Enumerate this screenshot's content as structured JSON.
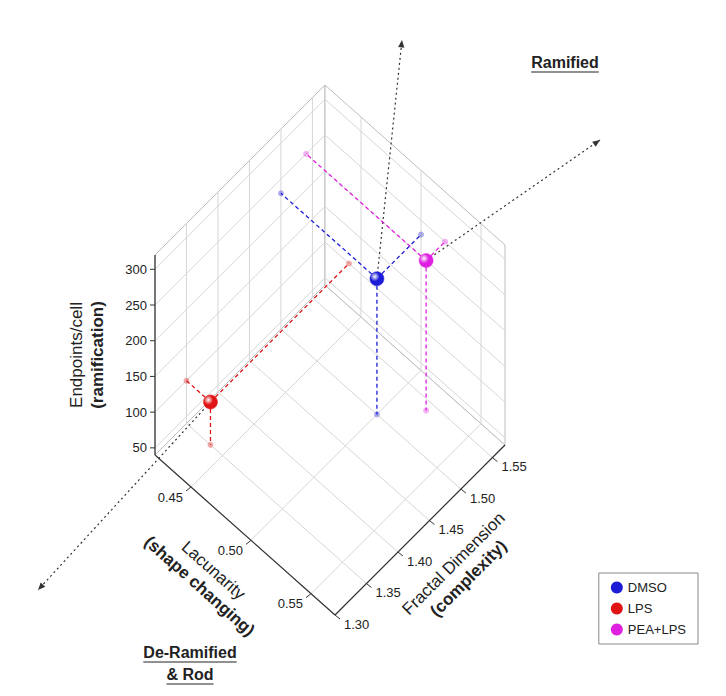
{
  "chart_data": {
    "type": "scatter3d",
    "xlabel": [
      "Lacunarity",
      "(shape changing)"
    ],
    "ylabel": [
      "Fractal Dimension",
      "(complexity)"
    ],
    "zlabel": [
      "Endpoints/cell",
      "(ramification)"
    ],
    "xlim": [
      0.42,
      0.57
    ],
    "xticks": [
      0.45,
      {
        "value": 0.5,
        "label": "0.50"
      },
      0.55
    ],
    "ylim": [
      1.3,
      1.57
    ],
    "yticks": [
      {
        "value": 1.3,
        "label": "1.30"
      },
      1.35,
      {
        "value": 1.4,
        "label": "1.40"
      },
      1.45,
      {
        "value": 1.5,
        "label": "1.50"
      },
      1.55
    ],
    "zlim": [
      40,
      320
    ],
    "zticks": [
      50,
      100,
      150,
      200,
      250,
      300
    ],
    "grid": true,
    "legend": "lower right",
    "series": [
      {
        "name": "DMSO",
        "color": "#1c1cd6",
        "x": [
          0.5
        ],
        "y": [
          1.5
        ],
        "z": [
          230
        ]
      },
      {
        "name": "LPS",
        "color": "#e01414",
        "x": [
          0.44
        ],
        "y": [
          1.35
        ],
        "z": [
          100
        ]
      },
      {
        "name": "PEA+LPS",
        "color": "#e020e0",
        "x": [
          0.52
        ],
        "y": [
          1.54
        ],
        "z": [
          250
        ]
      }
    ],
    "annotations": [
      {
        "text": [
          "Ramified"
        ],
        "target": [
          "DMSO",
          "PEA+LPS"
        ]
      },
      {
        "text": [
          "De-Ramified",
          "& Rod"
        ],
        "target": [
          "LPS"
        ]
      }
    ]
  }
}
